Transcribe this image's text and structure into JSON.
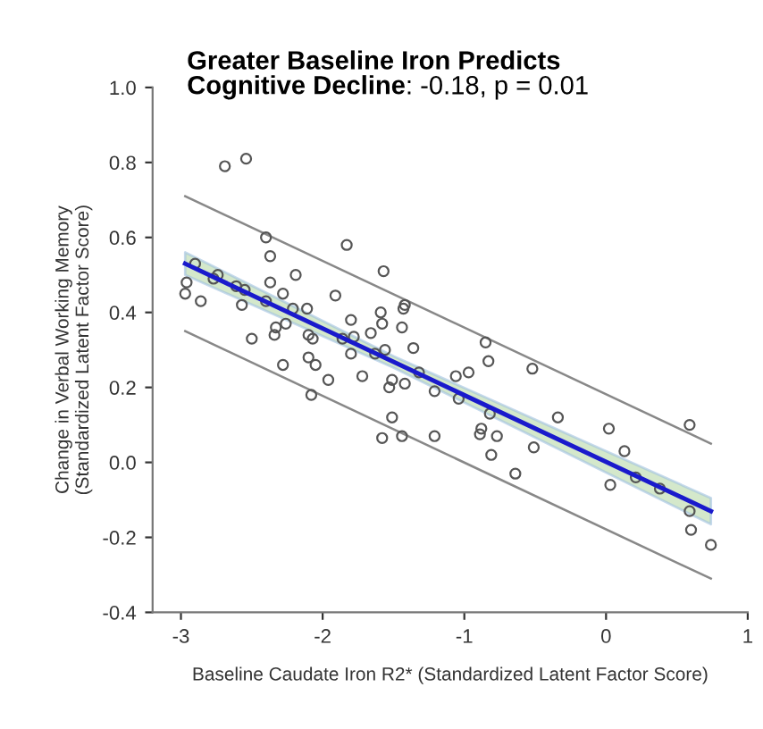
{
  "chart_data": {
    "type": "scatter",
    "title": "Greater Baseline Iron Predicts\nCognitive Decline",
    "subtitle": ": -0.18, p = 0.01",
    "xlabel": "Baseline Caudate Iron R2* (Standardized Latent Factor Score)",
    "ylabel": "Change in Verbal Working Memory\n(Standardized Latent Factor Score)",
    "xlim": [
      -3.2,
      1.0
    ],
    "ylim": [
      -0.4,
      1.0
    ],
    "xticks": [
      {
        "value": -3,
        "label": "-3"
      },
      {
        "value": -2,
        "label": "-2"
      },
      {
        "value": -1,
        "label": "-1"
      },
      0,
      1
    ],
    "yticks": [
      {
        "value": -0.4,
        "label": "-0.4"
      },
      {
        "value": -0.2,
        "label": "-0.2"
      },
      {
        "value": 0,
        "label": "0.0"
      },
      0.2,
      0.4,
      0.6,
      0.8,
      {
        "value": 1.0,
        "label": "1.0"
      }
    ],
    "grid": false,
    "legend": false,
    "series": [
      {
        "marker": "circle",
        "color": "#555555",
        "x": [
          -2.97,
          -2.86,
          -2.96,
          -2.9,
          -2.74,
          -2.77,
          -2.61,
          -2.55,
          -2.57,
          -2.5,
          -2.4,
          -2.37,
          -2.37,
          -2.4,
          -2.33,
          -2.34,
          -2.28,
          -2.26,
          -2.28,
          -2.19,
          -2.21,
          -2.11,
          -2.1,
          -2.08,
          -2.1,
          -2.05,
          -2.07,
          -1.96,
          -1.91,
          -1.83,
          -1.8,
          -1.86,
          -1.8,
          -1.78,
          -1.72,
          -1.66,
          -1.63,
          -1.59,
          -1.57,
          -1.58,
          -1.56,
          -1.53,
          -1.51,
          -1.51,
          -1.44,
          -1.44,
          -1.43,
          -1.42,
          -1.42,
          -1.36,
          -1.32,
          -1.21,
          -1.21,
          -1.06,
          -1.04,
          -0.97,
          -0.85,
          -0.83,
          -0.89,
          -0.88,
          -0.81,
          -0.77,
          -0.64,
          -0.82,
          -0.52,
          -0.51,
          -0.34,
          0.02,
          0.59,
          -1.58,
          0.03,
          0.21,
          0.38,
          0.59,
          0.6,
          0.74,
          0.13,
          -2.69,
          -2.54
        ],
        "values": [
          0.45,
          0.43,
          0.48,
          0.53,
          0.5,
          0.49,
          0.47,
          0.46,
          0.42,
          0.33,
          0.6,
          0.55,
          0.48,
          0.43,
          0.36,
          0.34,
          0.26,
          0.37,
          0.45,
          0.5,
          0.41,
          0.41,
          0.34,
          0.18,
          0.28,
          0.26,
          0.33,
          0.22,
          0.445,
          0.58,
          0.38,
          0.33,
          0.29,
          0.335,
          0.23,
          0.345,
          0.29,
          0.4,
          0.51,
          0.37,
          0.3,
          0.2,
          0.22,
          0.12,
          0.07,
          0.36,
          0.41,
          0.42,
          0.21,
          0.305,
          0.24,
          0.19,
          0.07,
          0.23,
          0.17,
          0.24,
          0.32,
          0.27,
          0.075,
          0.09,
          0.02,
          0.07,
          -0.03,
          0.13,
          0.25,
          0.04,
          0.12,
          0.09,
          0.1,
          0.065,
          -0.06,
          -0.04,
          -0.07,
          -0.13,
          -0.18,
          -0.22,
          0.03,
          0.79,
          0.81
        ]
      },
      {
        "type": "line",
        "color": "#1a1acc",
        "x": [
          -2.97,
          -1.5,
          0.74
        ],
        "values": [
          0.53,
          0.268,
          -0.13
        ],
        "lower": [
          0.5,
          0.253,
          -0.165
        ],
        "upper": [
          0.56,
          0.283,
          -0.095
        ]
      },
      {
        "type": "line",
        "color": "#888888",
        "x": [
          -2.97,
          0.74
        ],
        "values": [
          0.71,
          0.05
        ]
      },
      {
        "type": "line",
        "color": "#888888",
        "x": [
          -2.97,
          0.74
        ],
        "values": [
          0.35,
          -0.31
        ]
      }
    ]
  }
}
